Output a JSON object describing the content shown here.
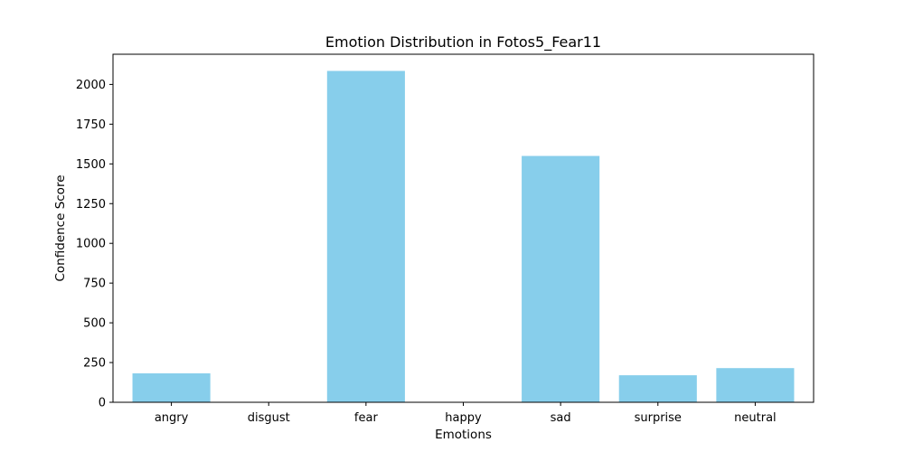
{
  "chart_data": {
    "type": "bar",
    "title": "Emotion Distribution in Fotos5_Fear11",
    "xlabel": "Emotions",
    "ylabel": "Confidence Score",
    "categories": [
      "angry",
      "disgust",
      "fear",
      "happy",
      "sad",
      "surprise",
      "neutral"
    ],
    "values": [
      182,
      0,
      2085,
      0,
      1550,
      170,
      215
    ],
    "ylim": [
      0,
      2190
    ],
    "yticks": [
      0,
      250,
      500,
      750,
      1000,
      1250,
      1500,
      1750,
      2000
    ],
    "grid": false,
    "bar_color": "#87CEEB"
  }
}
